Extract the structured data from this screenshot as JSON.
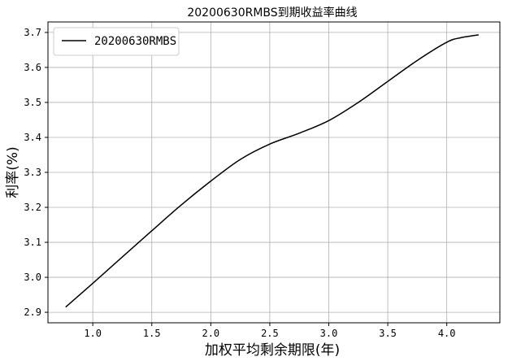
{
  "chart_data": {
    "type": "line",
    "title": "20200630RMBS到期收益率曲线",
    "xlabel": "加权平均剩余期限(年)",
    "ylabel": "利率(%)",
    "xlim": [
      0.62,
      4.45
    ],
    "ylim": [
      2.87,
      3.73
    ],
    "xticks": [
      "1.0",
      "1.5",
      "2.0",
      "2.5",
      "3.0",
      "3.5",
      "4.0"
    ],
    "yticks": [
      "2.9",
      "3.0",
      "3.1",
      "3.2",
      "3.3",
      "3.4",
      "3.5",
      "3.6",
      "3.7"
    ],
    "grid": true,
    "legend_position": "top-left",
    "series": [
      {
        "name": "20200630RMBS",
        "color": "#000000",
        "x": [
          0.77,
          1.0,
          1.25,
          1.5,
          1.75,
          2.0,
          2.25,
          2.5,
          2.75,
          3.0,
          3.25,
          3.5,
          3.75,
          4.0,
          4.12,
          4.27
        ],
        "y": [
          2.915,
          2.983,
          3.058,
          3.133,
          3.207,
          3.275,
          3.337,
          3.381,
          3.412,
          3.448,
          3.5,
          3.56,
          3.62,
          3.672,
          3.685,
          3.693
        ]
      }
    ]
  }
}
